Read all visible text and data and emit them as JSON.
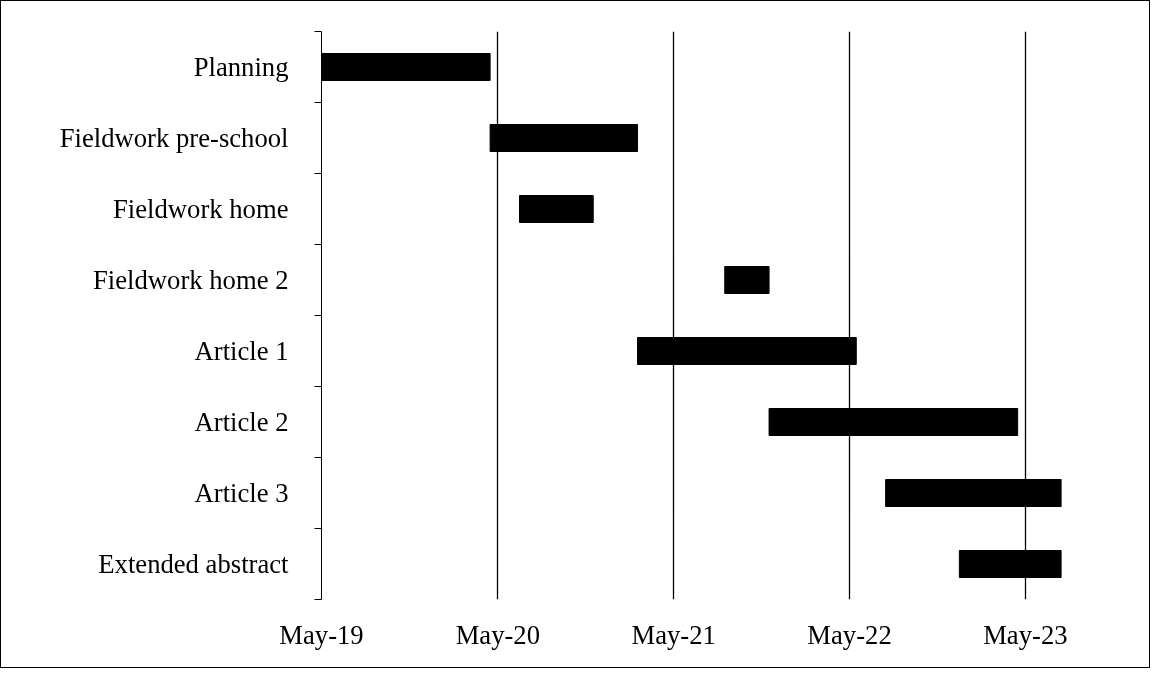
{
  "chart_data": {
    "type": "bar",
    "orientation": "horizontal",
    "categories": [
      "Planning",
      "Fieldwork pre-school",
      "Fieldwork home",
      "Fieldwork home 2",
      "Article 1",
      "Article 2",
      "Article 3",
      "Extended abstract"
    ],
    "base": [
      18017,
      18367,
      18428,
      18854,
      18673,
      18946,
      19188,
      19341
    ],
    "values": [
      350,
      306,
      153,
      92,
      454,
      516,
      365,
      212
    ],
    "color": "#000000",
    "xlim": [
      "2019-05-01",
      "2023-07-15"
    ],
    "xticks": [
      {
        "value": "2019-05",
        "label": "May-19"
      },
      {
        "value": "2020-05",
        "label": "May-20"
      },
      {
        "value": "2021-05",
        "label": "May-21"
      },
      {
        "value": "2022-05",
        "label": "May-22"
      },
      {
        "value": "2023-05",
        "label": "May-23"
      }
    ],
    "grid": "x"
  }
}
